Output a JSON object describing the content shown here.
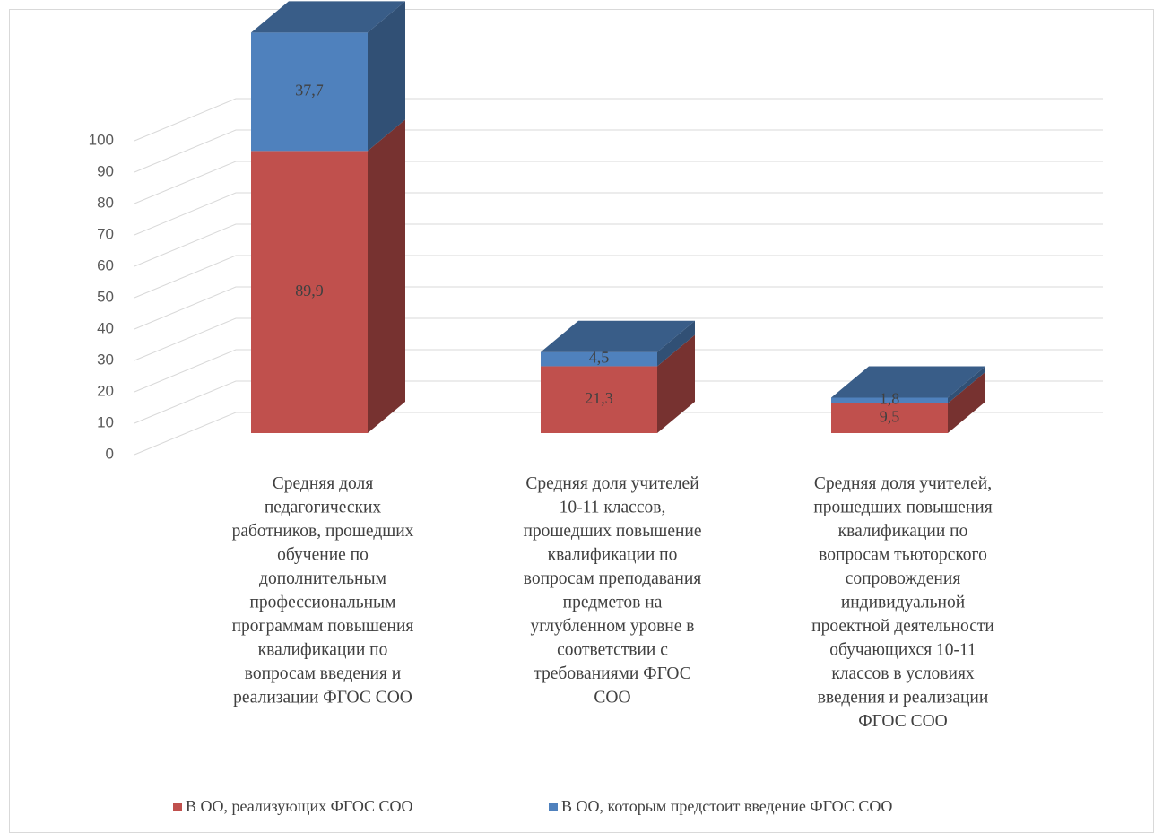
{
  "chart_data": {
    "type": "bar3d_stacked",
    "categories": [
      [
        "Средняя доля",
        "педагогических",
        "работников, прошедших",
        "обучение по",
        "дополнительным",
        "профессиональным",
        "программам повышения",
        "квалификации по",
        "вопросам введения и",
        "реализации ФГОС СОО"
      ],
      [
        "Средняя доля учителей",
        "10-11 классов,",
        "прошедших повышение",
        "квалификации по",
        "вопросам преподавания",
        "предметов на",
        "углубленном уровне в",
        "соответствии с",
        "требованиями ФГОС",
        "СОО"
      ],
      [
        "Средняя доля учителей,",
        "прошедших повышения",
        "квалификации по",
        "вопросам тьюторского",
        "сопровождения",
        "индивидуальной",
        "проектной деятельности",
        "обучающихся 10-11",
        "классов в условиях",
        "введения и реализации",
        "ФГОС СОО"
      ]
    ],
    "series": [
      {
        "name": "В ОО, реализующих ФГОС СОО",
        "color": "#c0504d",
        "values": [
          89.9,
          21.3,
          9.5
        ],
        "value_labels": [
          "89,9",
          "21,3",
          "9,5"
        ]
      },
      {
        "name": "В ОО, которым предстоит введение ФГОС СОО",
        "color": "#4f81bd",
        "values": [
          37.7,
          4.5,
          1.8
        ],
        "value_labels": [
          "37,7",
          "4,5",
          "1,8"
        ]
      }
    ],
    "ylim": [
      0,
      100
    ],
    "yticks": [
      0,
      10,
      20,
      30,
      40,
      50,
      60,
      70,
      80,
      90,
      100
    ],
    "grid": true,
    "legend": "bottom"
  }
}
